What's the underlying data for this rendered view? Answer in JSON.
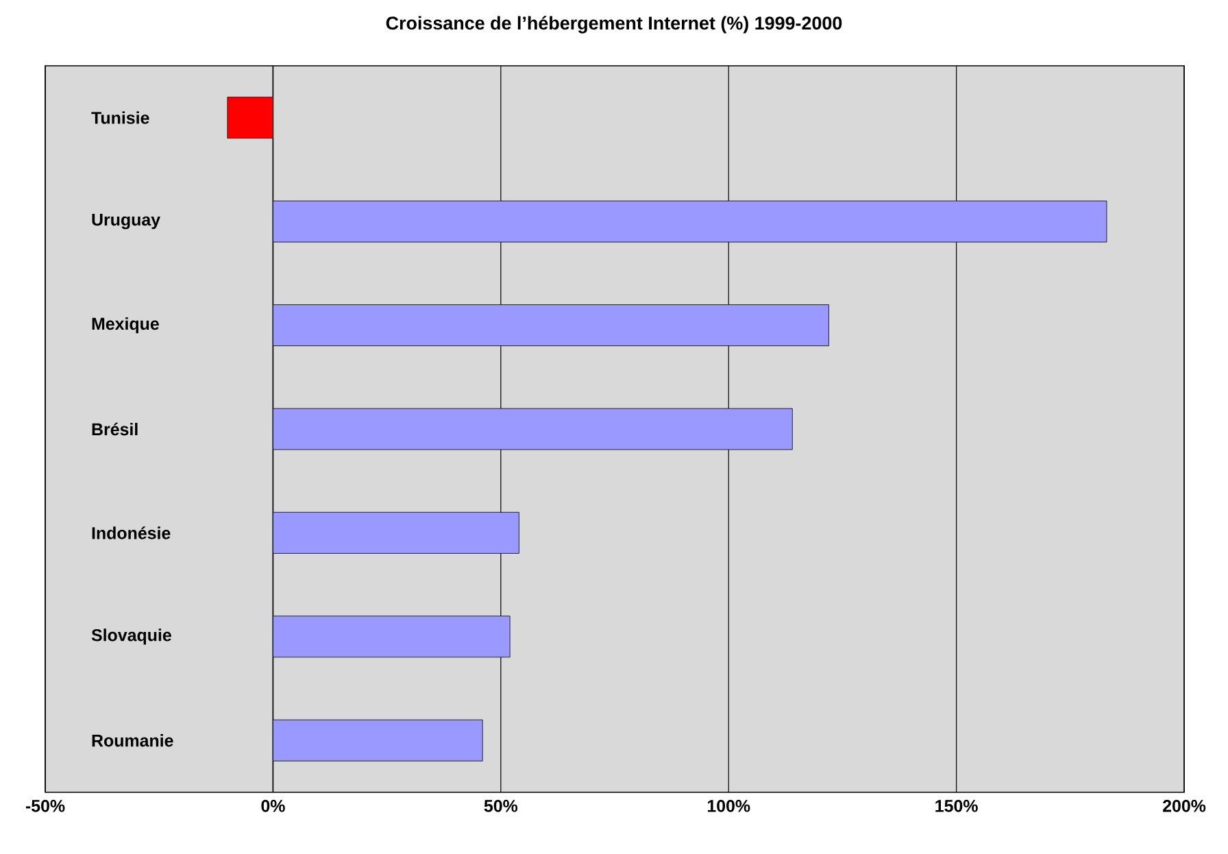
{
  "chart_data": {
    "type": "bar",
    "orientation": "horizontal",
    "title": "Croissance de l’hébergement Internet (%) 1999-2000",
    "categories": [
      "Tunisie",
      "Uruguay",
      "Mexique",
      "Brésil",
      "Indonésie",
      "Slovaquie",
      "Roumanie"
    ],
    "values": [
      -10,
      183,
      122,
      114,
      54,
      52,
      46
    ],
    "colors": [
      "#ff0000",
      "#9999ff",
      "#9999ff",
      "#9999ff",
      "#9999ff",
      "#9999ff",
      "#9999ff"
    ],
    "xlim": [
      -50,
      200
    ],
    "xticks": [
      {
        "value": -50,
        "label": "-50%"
      },
      {
        "value": 0,
        "label": "0%"
      },
      {
        "value": 50,
        "label": "50%"
      },
      {
        "value": 100,
        "label": "100%"
      },
      {
        "value": 150,
        "label": "150%"
      },
      {
        "value": 200,
        "label": "200%"
      }
    ],
    "grid": "x"
  }
}
